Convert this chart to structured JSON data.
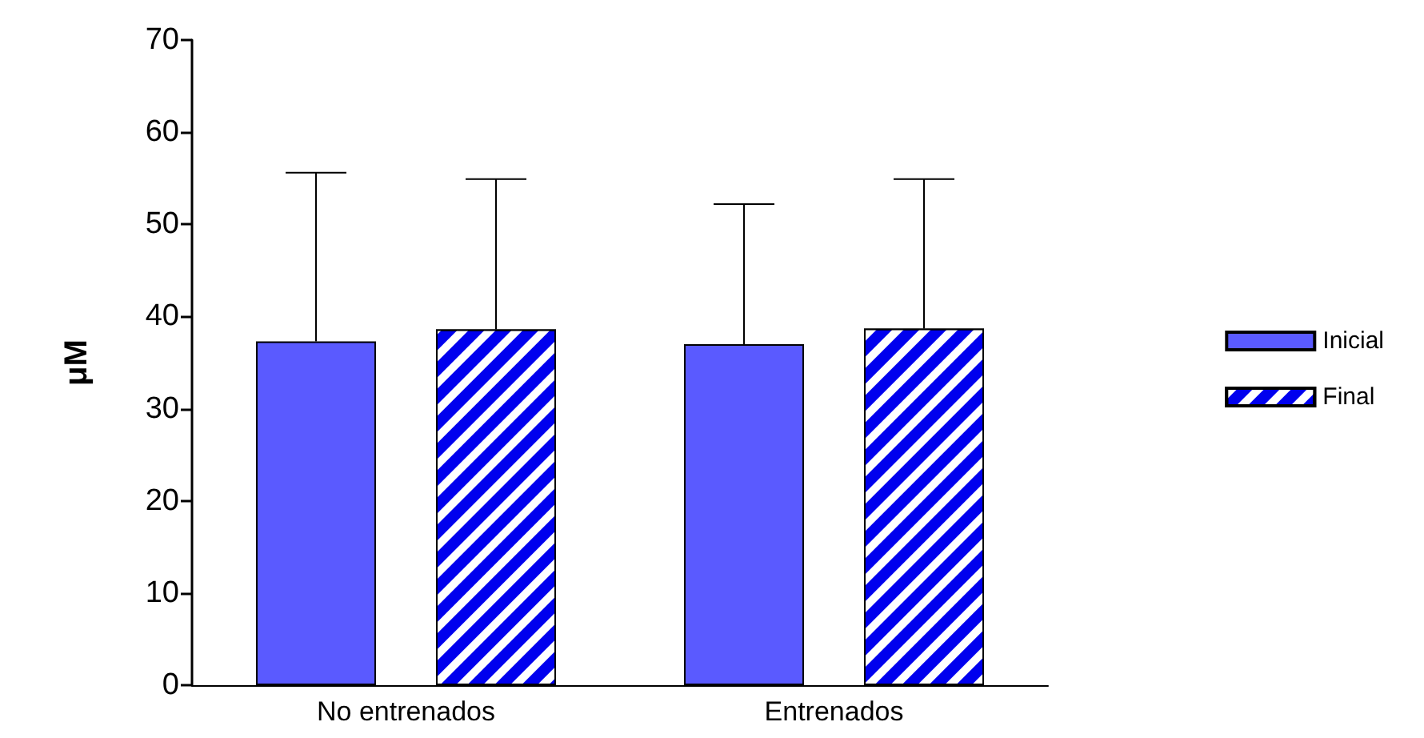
{
  "chart_data": {
    "type": "bar",
    "ylabel": "μM",
    "categories": [
      "No entrenados",
      "Entrenados"
    ],
    "series": [
      {
        "name": "Inicial",
        "color": "#5a5aff",
        "values": [
          37.3,
          37.0
        ],
        "errors": [
          [
            37.3,
            55.6
          ],
          [
            37.0,
            52.2
          ]
        ]
      },
      {
        "name": "Final",
        "color": "#0000ee",
        "values": [
          38.6,
          38.7
        ],
        "errors": [
          [
            38.6,
            54.9
          ],
          [
            38.7,
            54.9
          ]
        ]
      }
    ],
    "ylim": [
      0,
      70
    ],
    "yticks": [
      0,
      10,
      20,
      30,
      40,
      50,
      60,
      70
    ],
    "grid": false,
    "legend": "right"
  }
}
